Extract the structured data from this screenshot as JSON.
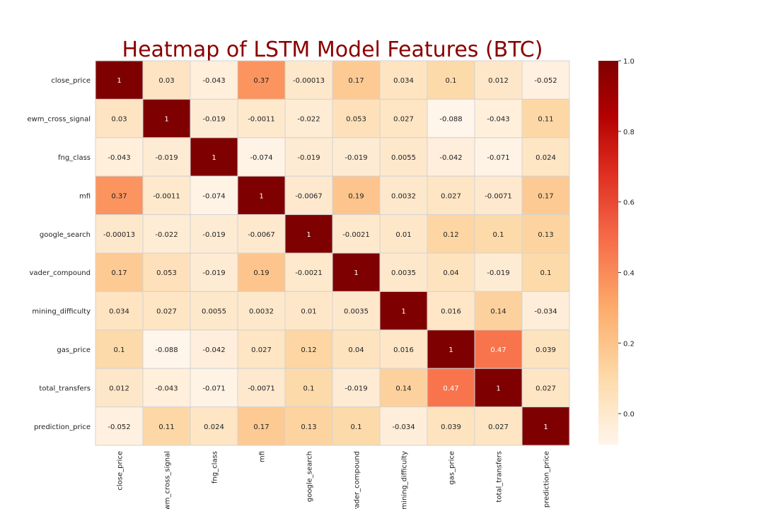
{
  "chart_data": {
    "type": "heatmap",
    "title": "Heatmap of LSTM Model Features (BTC)",
    "labels": [
      "close_price",
      "ewm_cross_signal",
      "fng_class",
      "mfi",
      "google_search",
      "vader_compound",
      "mining_difficulty",
      "gas_price",
      "total_transfers",
      "prediction_price"
    ],
    "matrix": [
      [
        1,
        0.03,
        -0.043,
        0.37,
        -0.00013,
        0.17,
        0.034,
        0.1,
        0.012,
        -0.052
      ],
      [
        0.03,
        1,
        -0.019,
        -0.0011,
        -0.022,
        0.053,
        0.027,
        -0.088,
        -0.043,
        0.11
      ],
      [
        -0.043,
        -0.019,
        1,
        -0.074,
        -0.019,
        -0.019,
        0.0055,
        -0.042,
        -0.071,
        0.024
      ],
      [
        0.37,
        -0.0011,
        -0.074,
        1,
        -0.0067,
        0.19,
        0.0032,
        0.027,
        -0.0071,
        0.17
      ],
      [
        -0.00013,
        -0.022,
        -0.019,
        -0.0067,
        1,
        -0.0021,
        0.01,
        0.12,
        0.1,
        0.13
      ],
      [
        0.17,
        0.053,
        -0.019,
        0.19,
        -0.0021,
        1,
        0.0035,
        0.04,
        -0.019,
        0.1
      ],
      [
        0.034,
        0.027,
        0.0055,
        0.0032,
        0.01,
        0.0035,
        1,
        0.016,
        0.14,
        -0.034
      ],
      [
        0.1,
        -0.088,
        -0.042,
        0.027,
        0.12,
        0.04,
        0.016,
        1,
        0.47,
        0.039
      ],
      [
        0.012,
        -0.043,
        -0.071,
        -0.0071,
        0.1,
        -0.019,
        0.14,
        0.47,
        1,
        0.027
      ],
      [
        -0.052,
        0.11,
        0.024,
        0.17,
        0.13,
        0.1,
        -0.034,
        0.039,
        0.027,
        1
      ]
    ],
    "colorscale": "OrRd",
    "vmin": -0.088,
    "vmax": 1,
    "colorbar_ticks": [
      "0.0",
      "0.2",
      "0.4",
      "0.6",
      "0.8",
      "1.0"
    ],
    "xlabel": "",
    "ylabel": "",
    "grid": true
  }
}
